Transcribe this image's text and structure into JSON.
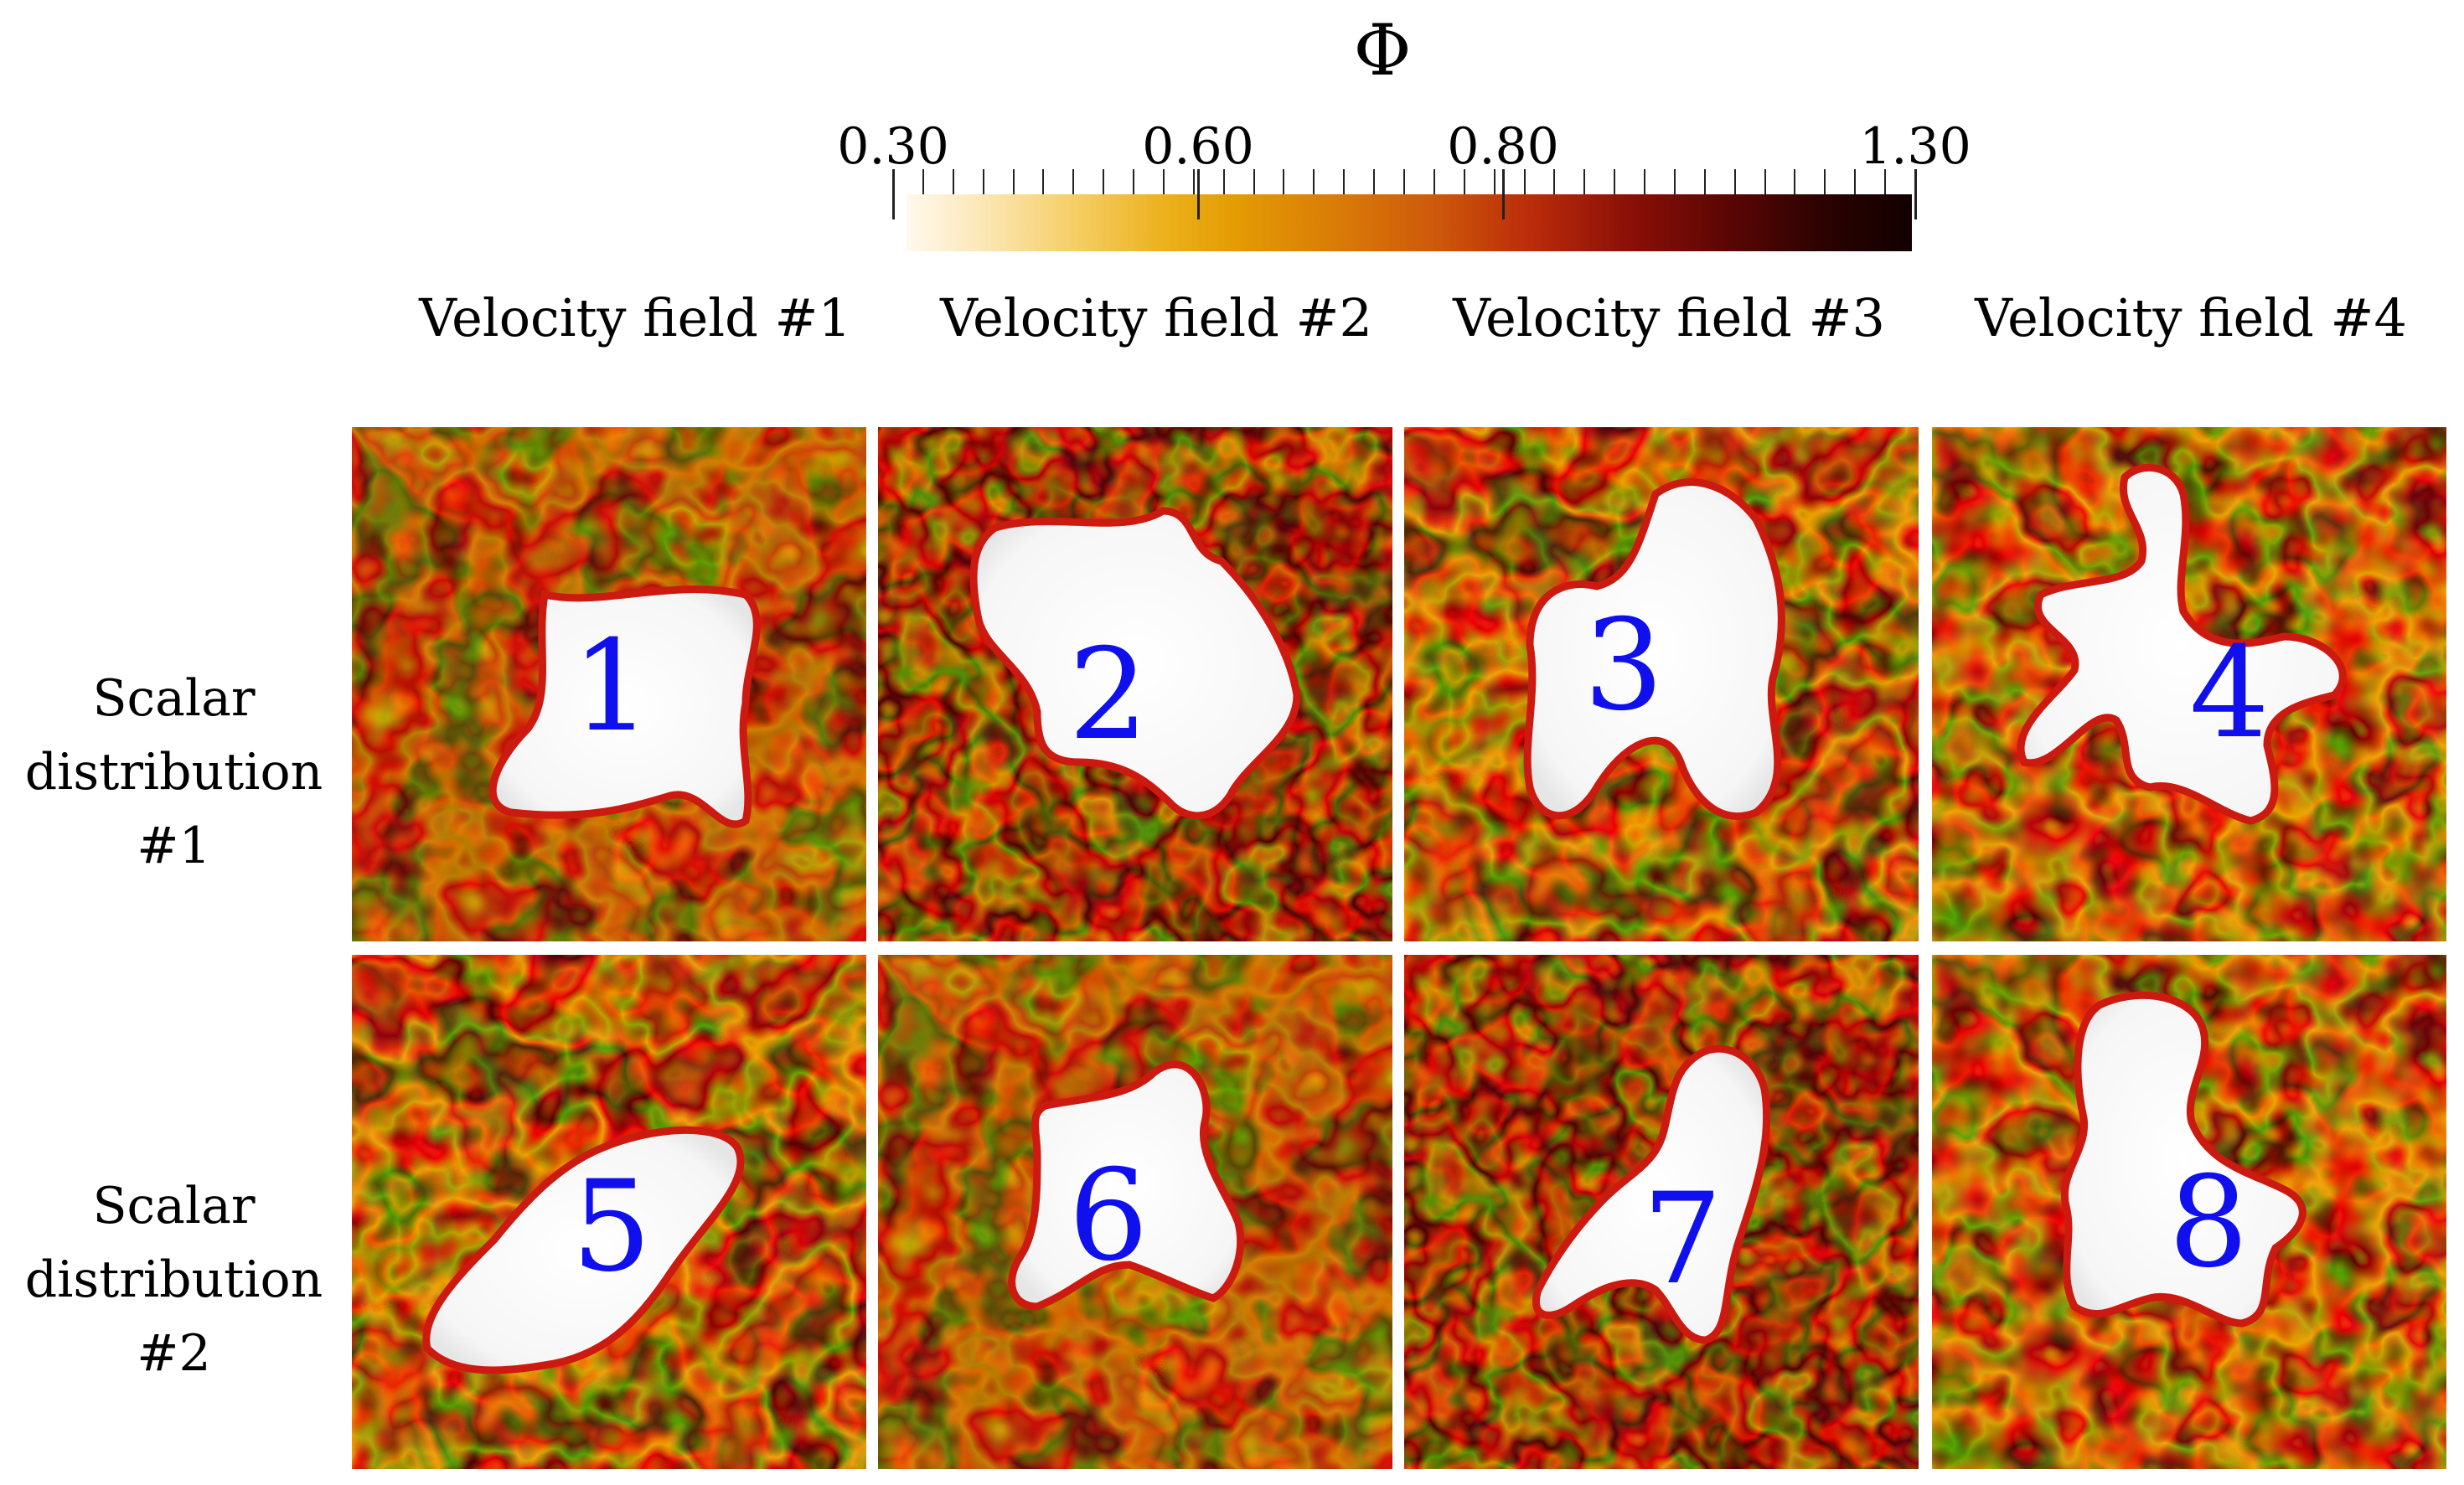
{
  "colorbar": {
    "symbol": "Φ",
    "tick_labels": [
      {
        "label": "0.30",
        "value": 0.3
      },
      {
        "label": "0.60",
        "value": 0.6
      },
      {
        "label": "0.80",
        "value": 0.8
      },
      {
        "label": "1.30",
        "value": 1.3
      }
    ],
    "range": [
      0.3,
      1.3
    ],
    "colors": [
      "#fff9ee",
      "#ebb01a",
      "#cf5b0a",
      "#8b0f07",
      "#120000"
    ]
  },
  "columns": [
    {
      "label": "Velocity field #1"
    },
    {
      "label": "Velocity field #2"
    },
    {
      "label": "Velocity field #3"
    },
    {
      "label": "Velocity field #4"
    }
  ],
  "rows": [
    {
      "line1": "Scalar",
      "line2": "distribution",
      "line3": "#1"
    },
    {
      "line1": "Scalar",
      "line2": "distribution",
      "line3": "#2"
    }
  ],
  "panels": [
    {
      "number": "1"
    },
    {
      "number": "2"
    },
    {
      "number": "3"
    },
    {
      "number": "4"
    },
    {
      "number": "5"
    },
    {
      "number": "6"
    },
    {
      "number": "7"
    },
    {
      "number": "8"
    }
  ],
  "accent_colors": {
    "case_number": "#1010ee",
    "interface": "#cc1a10",
    "background_field": "#cf6a08"
  }
}
